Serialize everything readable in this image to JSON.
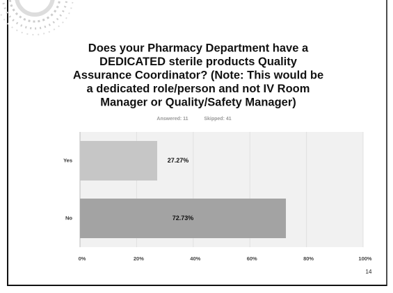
{
  "chart_data": {
    "type": "bar",
    "orientation": "horizontal",
    "title": [
      "Does your Pharmacy Department have a",
      "DEDICATED sterile products Quality",
      "Assurance Coordinator? (Note: This would be",
      "a dedicated role/person and not IV Room",
      "Manager or Quality/Safety Manager)"
    ],
    "subtitle": [
      "Answered: 11",
      "Skipped: 41"
    ],
    "categories": [
      "Yes",
      "No"
    ],
    "values": [
      27.27,
      72.73
    ],
    "value_labels": [
      "27.27%",
      "72.73%"
    ],
    "colors": [
      "#c6c6c6",
      "#a3a3a3"
    ],
    "xlim": [
      0,
      100
    ],
    "xticks": [
      {
        "value": 0,
        "label": "0%"
      },
      {
        "value": 20,
        "label": "20%"
      },
      {
        "value": 40,
        "label": "40%"
      },
      {
        "value": 60,
        "label": "60%"
      },
      {
        "value": 80,
        "label": "80%"
      },
      {
        "value": 100,
        "label": "100%"
      }
    ],
    "grid": true
  },
  "page_number": "14"
}
